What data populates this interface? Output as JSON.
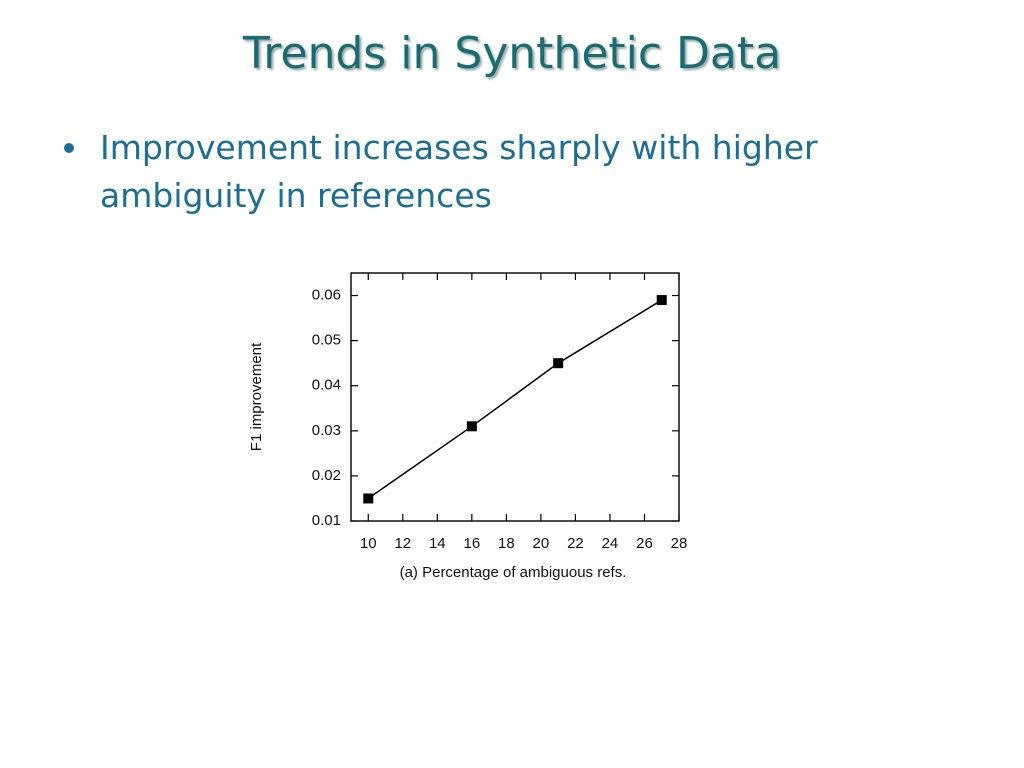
{
  "slide": {
    "title": "Trends in Synthetic Data",
    "bullets": [
      "Improvement increases sharply with higher ambiguity in references"
    ]
  },
  "chart_data": {
    "type": "line",
    "xlabel": "(a) Percentage of ambiguous refs.",
    "ylabel": "F1 improvement",
    "x": [
      10,
      16,
      21,
      27
    ],
    "values": [
      0.015,
      0.031,
      0.045,
      0.059
    ],
    "color": "#000000",
    "xlim": [
      9,
      28
    ],
    "xticks": [
      10,
      12,
      14,
      16,
      18,
      20,
      22,
      24,
      26,
      28
    ],
    "ylim": [
      0.01,
      0.065
    ],
    "yticks": [
      0.01,
      0.02,
      0.03,
      0.04,
      0.05,
      0.06
    ]
  }
}
